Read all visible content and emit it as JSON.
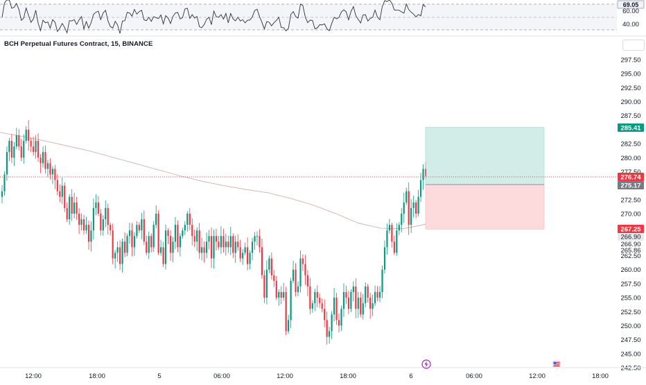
{
  "chart": {
    "title": "BCH Perpetual Futures Contract, 15, BINANCE"
  },
  "rsi_pane": {
    "current_value": "69.05",
    "levels": [
      "60.00",
      "40.00"
    ],
    "colors": {
      "line": "#131722",
      "band": "#f2f3f7",
      "badge": "#f0f3fa"
    }
  },
  "price_axis": {
    "ticks": [
      "297.50",
      "295.00",
      "292.50",
      "290.00",
      "287.50",
      "282.50",
      "280.00",
      "277.50",
      "272.50",
      "270.00",
      "262.50",
      "260.00",
      "257.50",
      "255.00",
      "252.50",
      "250.00",
      "247.50",
      "245.00",
      "242.50"
    ],
    "extra_labels": [
      "266.90",
      "265.86"
    ]
  },
  "time_axis": {
    "ticks": [
      "12:00",
      "18:00",
      "5",
      "06:00",
      "12:00",
      "18:00",
      "6",
      "06:00",
      "12:00",
      "18:00"
    ]
  },
  "badges": {
    "target": {
      "value": "285.41",
      "color": "#089981"
    },
    "last_price": {
      "value": "276.74",
      "color": "#f23645"
    },
    "entry": {
      "value": "275.17",
      "color": "#787b86"
    },
    "stop": {
      "value": "267.25",
      "color": "#f23645"
    },
    "prev": {
      "value": "266.90",
      "color": "#e8e9ec"
    }
  },
  "position_tool": {
    "target_price": 285.41,
    "entry_price": 275.17,
    "stop_price": 267.25,
    "colors": {
      "profit": "rgba(8,153,129,0.18)",
      "loss": "rgba(242,54,69,0.18)"
    }
  },
  "chart_data": {
    "type": "candlestick",
    "y_range": [
      242.5,
      297.5
    ],
    "colors": {
      "up": "#089981",
      "down": "#f23645",
      "ma": "#c9a9a6"
    },
    "closes": [
      274,
      277,
      281,
      283,
      280,
      282,
      284,
      282,
      280,
      283,
      285,
      283,
      282,
      281,
      283,
      280,
      279,
      281,
      278,
      279,
      277,
      278,
      276,
      274,
      273,
      275,
      271,
      269,
      273,
      270,
      272,
      270,
      268,
      269,
      267,
      268,
      265,
      267,
      271,
      272,
      270,
      267,
      269,
      271,
      268,
      267,
      262,
      263,
      264,
      261,
      265,
      263,
      266,
      267,
      264,
      266,
      268,
      267,
      269,
      265,
      263,
      266,
      264,
      268,
      270,
      263,
      264,
      261,
      267,
      266,
      263,
      265,
      268,
      264,
      266,
      267,
      268,
      270,
      268,
      266,
      265,
      267,
      263,
      264,
      263,
      265,
      266,
      262,
      266,
      265,
      264,
      266,
      264,
      265,
      264,
      266,
      263,
      265,
      264,
      262,
      263,
      264,
      261,
      263,
      265,
      266,
      266,
      264,
      259,
      255,
      260,
      262,
      259,
      258,
      255,
      256,
      255,
      256,
      249,
      251,
      258,
      260,
      256,
      257,
      262,
      261,
      259,
      257,
      253,
      254,
      256,
      255,
      254,
      253,
      251,
      248,
      249,
      252,
      255,
      251,
      250,
      253,
      256,
      255,
      253,
      256,
      257,
      253,
      255,
      252,
      254,
      257,
      255,
      253,
      254,
      256,
      255,
      256,
      260,
      264,
      267,
      268,
      265,
      263,
      267,
      268,
      270,
      272,
      274,
      268,
      271,
      272,
      270,
      273,
      276,
      278,
      276.7
    ],
    "ma": [
      284.5,
      283.8,
      283.0,
      282.1,
      281.2,
      280.1,
      279.0,
      277.9,
      276.8,
      275.8,
      275.0,
      274.3,
      273.7,
      272.7,
      271.5,
      270.0,
      268.3,
      267.4,
      267.3,
      268.1
    ]
  }
}
